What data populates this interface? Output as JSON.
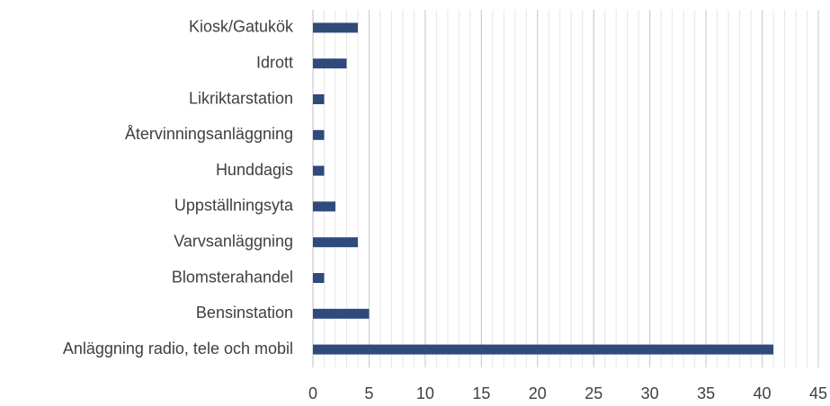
{
  "chart_data": {
    "type": "barh",
    "categories": [
      "Kiosk/Gatukök",
      "Idrott",
      "Likriktarstation",
      "Återvinningsanläggning",
      "Hunddagis",
      "Uppställningsyta",
      "Varvsanläggning",
      "Blomsterahandel",
      "Bensinstation",
      "Anläggning radio, tele och mobil"
    ],
    "values": [
      4,
      3,
      1,
      1,
      1,
      2,
      4,
      1,
      5,
      41
    ],
    "color": "#2f4b7c",
    "xlim": [
      0,
      45
    ],
    "xticks": [
      0,
      5,
      10,
      15,
      20,
      25,
      30,
      35,
      40,
      45
    ],
    "grid": true,
    "minor_grid": true
  }
}
